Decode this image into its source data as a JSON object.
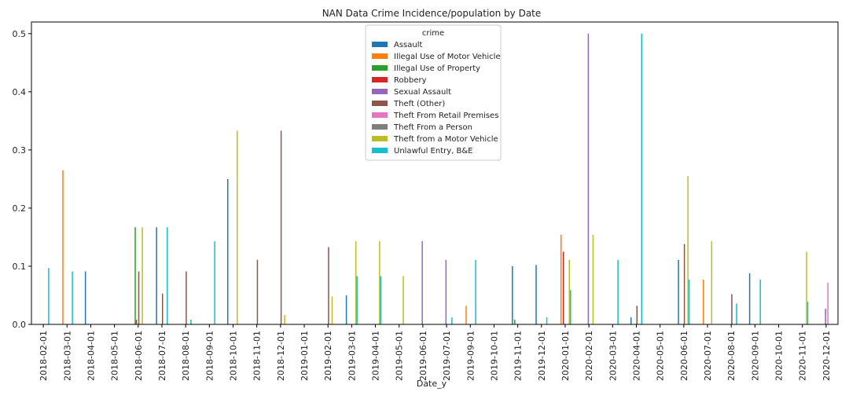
{
  "chart_data": {
    "type": "bar",
    "title": "NAN Data Crime Incidence/population by Date",
    "xlabel": "Date_y",
    "ylabel": "",
    "ylim": [
      0,
      0.52
    ],
    "yticks": [
      0.0,
      0.1,
      0.2,
      0.3,
      0.4,
      0.5
    ],
    "ytick_labels": [
      "0.0",
      "0.1",
      "0.2",
      "0.3",
      "0.4",
      "0.5"
    ],
    "grid": false,
    "legend": {
      "title": "crime",
      "placement": "top-center"
    },
    "categories": [
      "2018-02-01",
      "2018-03-01",
      "2018-04-01",
      "2018-05-01",
      "2018-06-01",
      "2018-07-01",
      "2018-08-01",
      "2018-09-01",
      "2018-10-01",
      "2018-11-01",
      "2018-12-01",
      "2019-01-01",
      "2019-02-01",
      "2019-03-01",
      "2019-04-01",
      "2019-05-01",
      "2019-06-01",
      "2019-07-01",
      "2019-09-01",
      "2019-10-01",
      "2019-11-01",
      "2019-12-01",
      "2020-01-01",
      "2020-02-01",
      "2020-03-01",
      "2020-04-01",
      "2020-05-01",
      "2020-06-01",
      "2020-07-01",
      "2020-08-01",
      "2020-09-01",
      "2020-10-01",
      "2020-11-01",
      "2020-12-01"
    ],
    "series": [
      {
        "name": "Assault",
        "color": "#1f77b4",
        "values": [
          0,
          0,
          0.091,
          0,
          0,
          0.167,
          0,
          0,
          0.25,
          0,
          0,
          0,
          0,
          0.05,
          0,
          0,
          0,
          0,
          0,
          0,
          0.1,
          0.102,
          0,
          0,
          0,
          0.012,
          0,
          0.111,
          0,
          0,
          0.088,
          0,
          0,
          0
        ]
      },
      {
        "name": "Illegal Use of Motor Vehicle",
        "color": "#ff7f0e",
        "values": [
          0,
          0.265,
          0,
          0,
          0,
          0,
          0,
          0,
          0,
          0,
          0,
          0,
          0,
          0,
          0,
          0,
          0,
          0,
          0.032,
          0,
          0,
          0,
          0.154,
          0,
          0,
          0,
          0,
          0,
          0.077,
          0,
          0,
          0,
          0,
          0
        ]
      },
      {
        "name": "Illegal Use of Property",
        "color": "#2ca02c",
        "values": [
          0,
          0,
          0,
          0,
          0.167,
          0,
          0,
          0,
          0,
          0,
          0,
          0,
          0,
          0,
          0,
          0,
          0,
          0,
          0,
          0,
          0.008,
          0,
          0,
          0,
          0,
          0,
          0,
          0,
          0,
          0,
          0,
          0,
          0,
          0
        ]
      },
      {
        "name": "Robbery",
        "color": "#d62728",
        "values": [
          0,
          0,
          0,
          0,
          0.008,
          0,
          0,
          0,
          0,
          0,
          0,
          0,
          0,
          0,
          0,
          0,
          0,
          0,
          0,
          0,
          0,
          0,
          0.125,
          0,
          0,
          0,
          0,
          0,
          0,
          0,
          0,
          0,
          0,
          0
        ]
      },
      {
        "name": "Sexual Assault",
        "color": "#9467bd",
        "values": [
          0,
          0,
          0,
          0,
          0,
          0,
          0,
          0,
          0,
          0,
          0,
          0,
          0,
          0,
          0,
          0,
          0.143,
          0.111,
          0,
          0,
          0,
          0,
          0,
          0.5,
          0,
          0,
          0,
          0,
          0,
          0,
          0,
          0,
          0,
          0.027
        ]
      },
      {
        "name": "Theft (Other)",
        "color": "#8c564b",
        "values": [
          0,
          0,
          0,
          0,
          0.091,
          0.053,
          0.091,
          0,
          0,
          0.111,
          0.333,
          0,
          0.133,
          0,
          0,
          0,
          0,
          0,
          0,
          0,
          0,
          0,
          0,
          0,
          0,
          0.032,
          0,
          0.138,
          0,
          0.052,
          0,
          0,
          0,
          0
        ]
      },
      {
        "name": "Theft From Retail Premises",
        "color": "#e377c2",
        "values": [
          0,
          0,
          0,
          0,
          0,
          0,
          0,
          0,
          0,
          0,
          0,
          0,
          0,
          0,
          0,
          0,
          0,
          0,
          0,
          0,
          0,
          0,
          0,
          0,
          0,
          0,
          0,
          0,
          0,
          0,
          0,
          0,
          0,
          0.072
        ]
      },
      {
        "name": "Theft From a Person",
        "color": "#7f7f7f",
        "values": [
          0,
          0,
          0,
          0,
          0,
          0,
          0,
          0,
          0,
          0,
          0,
          0,
          0,
          0,
          0,
          0,
          0,
          0,
          0,
          0,
          0,
          0,
          0,
          0,
          0,
          0,
          0,
          0,
          0,
          0,
          0,
          0,
          0,
          0
        ]
      },
      {
        "name": "Theft from a Motor Vehicle",
        "color": "#bcbd22",
        "values": [
          0,
          0,
          0,
          0,
          0.167,
          0,
          0,
          0,
          0.333,
          0,
          0.016,
          0,
          0.048,
          0.143,
          0.143,
          0.083,
          0,
          0,
          0,
          0,
          0,
          0,
          0.111,
          0.154,
          0,
          0,
          0,
          0.255,
          0.143,
          0,
          0,
          0,
          0.125,
          0
        ]
      },
      {
        "name": "Unlawful Entry, B&E",
        "color": "#17becf",
        "values": [
          0.097,
          0.091,
          0,
          0,
          0,
          0.167,
          0.008,
          0.143,
          0,
          0,
          0,
          0,
          0,
          0.083,
          0.083,
          0,
          0,
          0.012,
          0.111,
          0,
          0,
          0.012,
          0.059,
          0,
          0.111,
          0.5,
          0,
          0.077,
          0,
          0.036,
          0.077,
          0,
          0.039,
          0
        ]
      }
    ]
  }
}
